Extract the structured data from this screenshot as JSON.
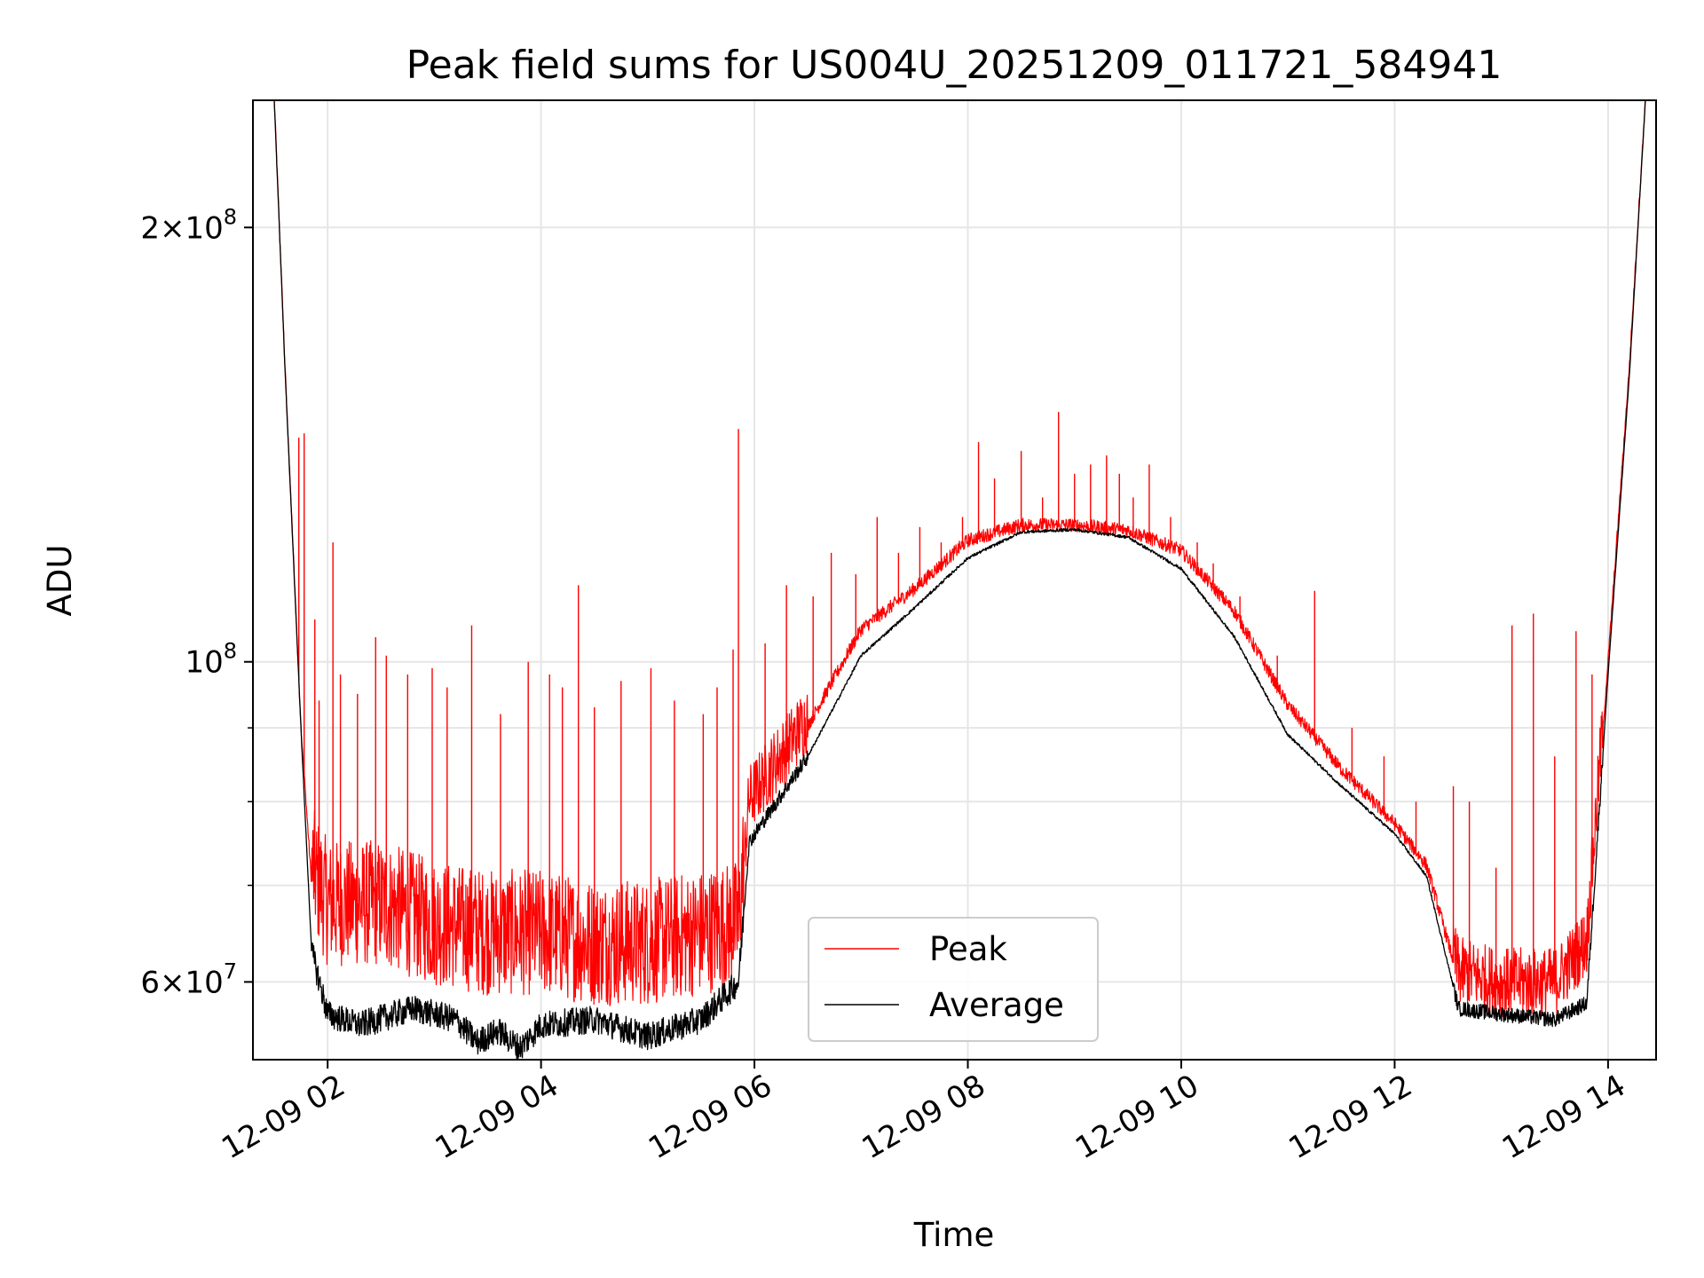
{
  "chart_data": {
    "type": "line",
    "title": "Peak field sums for US004U_20251209_011721_584941",
    "xlabel": "Time",
    "ylabel": "ADU",
    "yscale": "log",
    "x_range_hours": [
      1.3,
      14.45
    ],
    "ylim": [
      53000000,
      245000000
    ],
    "grid": true,
    "legend_position": "lower-center",
    "x_ticks": [
      {
        "value": 2,
        "label": "12-09 02"
      },
      {
        "value": 4,
        "label": "12-09 04"
      },
      {
        "value": 6,
        "label": "12-09 06"
      },
      {
        "value": 8,
        "label": "12-09 08"
      },
      {
        "value": 10,
        "label": "12-09 10"
      },
      {
        "value": 12,
        "label": "12-09 12"
      },
      {
        "value": 14,
        "label": "12-09 14"
      }
    ],
    "y_major_ticks": [
      {
        "value": 60000000,
        "mantissa": "6",
        "times": "×",
        "base": "10",
        "exponent": "7"
      },
      {
        "value": 100000000,
        "mantissa": "",
        "times": "",
        "base": "10",
        "exponent": "8"
      },
      {
        "value": 200000000,
        "mantissa": "2",
        "times": "×",
        "base": "10",
        "exponent": "8"
      }
    ],
    "y_minor_ticks": [
      70000000,
      80000000,
      90000000
    ],
    "series": [
      {
        "name": "Peak",
        "color": "#ff0000",
        "x": [
          1.5,
          1.6,
          1.75,
          1.85,
          2.0,
          2.5,
          3.0,
          3.5,
          4.0,
          4.5,
          5.0,
          5.5,
          5.85,
          5.95,
          6.5,
          7.0,
          7.5,
          8.0,
          8.5,
          9.0,
          9.5,
          10.0,
          10.5,
          11.0,
          11.5,
          12.0,
          12.3,
          12.6,
          13.0,
          13.5,
          13.8,
          14.0,
          14.2,
          14.35
        ],
        "values": [
          245000000,
          160000000,
          90000000,
          70000000,
          66000000,
          66000000,
          64000000,
          63000000,
          63000000,
          62000000,
          62000000,
          63000000,
          64000000,
          79000000,
          90000000,
          105000000,
          112000000,
          121000000,
          124000000,
          124000000,
          123000000,
          119000000,
          108000000,
          93000000,
          84000000,
          77000000,
          72000000,
          60000000,
          59000000,
          59000000,
          63000000,
          100000000,
          160000000,
          245000000
        ]
      },
      {
        "name": "Average",
        "color": "#000000",
        "x": [
          1.5,
          1.6,
          1.75,
          1.85,
          2.0,
          2.3,
          2.8,
          3.2,
          3.4,
          3.6,
          3.8,
          4.0,
          4.5,
          5.0,
          5.5,
          5.85,
          5.95,
          6.5,
          7.0,
          7.5,
          8.0,
          8.5,
          9.0,
          9.5,
          10.0,
          10.5,
          11.0,
          11.5,
          12.0,
          12.3,
          12.6,
          13.0,
          13.5,
          13.8,
          14.0,
          14.2,
          14.35
        ],
        "values": [
          245000000,
          160000000,
          90000000,
          63000000,
          57000000,
          56000000,
          57500000,
          56500000,
          54500000,
          55500000,
          54000000,
          56000000,
          56500000,
          55000000,
          56500000,
          60000000,
          75000000,
          86000000,
          101000000,
          109000000,
          118000000,
          123000000,
          123500000,
          122000000,
          116000000,
          104000000,
          89000000,
          82000000,
          76000000,
          71000000,
          57500000,
          57000000,
          56500000,
          58000000,
          98000000,
          158000000,
          245000000
        ]
      }
    ],
    "peak_spikes": [
      {
        "x": 1.73,
        "y": 143000000
      },
      {
        "x": 1.78,
        "y": 144000000
      },
      {
        "x": 1.88,
        "y": 107000000
      },
      {
        "x": 1.92,
        "y": 94000000
      },
      {
        "x": 2.05,
        "y": 121000000
      },
      {
        "x": 2.12,
        "y": 98000000
      },
      {
        "x": 2.28,
        "y": 95000000
      },
      {
        "x": 2.45,
        "y": 104000000
      },
      {
        "x": 2.55,
        "y": 101000000
      },
      {
        "x": 2.75,
        "y": 98000000
      },
      {
        "x": 2.98,
        "y": 99000000
      },
      {
        "x": 3.12,
        "y": 96000000
      },
      {
        "x": 3.35,
        "y": 106000000
      },
      {
        "x": 3.62,
        "y": 92000000
      },
      {
        "x": 3.88,
        "y": 100000000
      },
      {
        "x": 4.08,
        "y": 98000000
      },
      {
        "x": 4.2,
        "y": 96000000
      },
      {
        "x": 4.35,
        "y": 113000000
      },
      {
        "x": 4.5,
        "y": 93000000
      },
      {
        "x": 4.75,
        "y": 97000000
      },
      {
        "x": 5.03,
        "y": 99000000
      },
      {
        "x": 5.25,
        "y": 94000000
      },
      {
        "x": 5.52,
        "y": 92000000
      },
      {
        "x": 5.65,
        "y": 96000000
      },
      {
        "x": 5.8,
        "y": 102000000
      },
      {
        "x": 5.85,
        "y": 145000000
      },
      {
        "x": 6.1,
        "y": 103000000
      },
      {
        "x": 6.3,
        "y": 113000000
      },
      {
        "x": 6.55,
        "y": 111000000
      },
      {
        "x": 6.72,
        "y": 119000000
      },
      {
        "x": 6.95,
        "y": 115000000
      },
      {
        "x": 7.15,
        "y": 126000000
      },
      {
        "x": 7.35,
        "y": 119000000
      },
      {
        "x": 7.55,
        "y": 124000000
      },
      {
        "x": 7.75,
        "y": 121000000
      },
      {
        "x": 7.95,
        "y": 126000000
      },
      {
        "x": 8.1,
        "y": 142000000
      },
      {
        "x": 8.25,
        "y": 134000000
      },
      {
        "x": 8.5,
        "y": 140000000
      },
      {
        "x": 8.7,
        "y": 130000000
      },
      {
        "x": 8.85,
        "y": 149000000
      },
      {
        "x": 9.0,
        "y": 135000000
      },
      {
        "x": 9.15,
        "y": 137000000
      },
      {
        "x": 9.3,
        "y": 139000000
      },
      {
        "x": 9.42,
        "y": 135000000
      },
      {
        "x": 9.55,
        "y": 130000000
      },
      {
        "x": 9.7,
        "y": 137000000
      },
      {
        "x": 9.9,
        "y": 126000000
      },
      {
        "x": 10.15,
        "y": 121000000
      },
      {
        "x": 10.3,
        "y": 117000000
      },
      {
        "x": 10.55,
        "y": 111000000
      },
      {
        "x": 10.9,
        "y": 101000000
      },
      {
        "x": 11.25,
        "y": 112000000
      },
      {
        "x": 11.6,
        "y": 90000000
      },
      {
        "x": 11.9,
        "y": 86000000
      },
      {
        "x": 12.2,
        "y": 80000000
      },
      {
        "x": 12.55,
        "y": 82000000
      },
      {
        "x": 12.7,
        "y": 80000000
      },
      {
        "x": 12.95,
        "y": 72000000
      },
      {
        "x": 13.1,
        "y": 106000000
      },
      {
        "x": 13.3,
        "y": 108000000
      },
      {
        "x": 13.5,
        "y": 86000000
      },
      {
        "x": 13.7,
        "y": 105000000
      },
      {
        "x": 13.85,
        "y": 98000000
      }
    ]
  }
}
